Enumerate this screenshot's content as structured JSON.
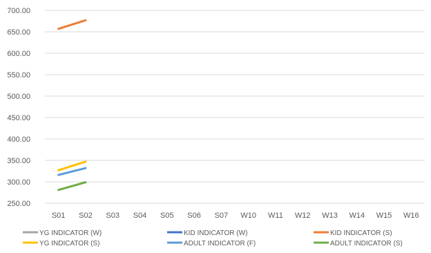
{
  "chart_data": {
    "type": "line",
    "title": "",
    "xlabel": "",
    "ylabel": "",
    "categories": [
      "S01",
      "S02",
      "S03",
      "S04",
      "S05",
      "S06",
      "S07",
      "W10",
      "W11",
      "W12",
      "W13",
      "W14",
      "W15",
      "W16"
    ],
    "ylim": [
      250,
      700
    ],
    "yticks": [
      250,
      300,
      350,
      400,
      450,
      500,
      550,
      600,
      650,
      700
    ],
    "ytick_labels": [
      "250.00",
      "300.00",
      "350.00",
      "400.00",
      "450.00",
      "500.00",
      "550.00",
      "600.00",
      "650.00",
      "700.00"
    ],
    "grid": true,
    "legend_position": "bottom",
    "series": [
      {
        "name": "YG INDICATOR (W)",
        "color": "#A5A5A5",
        "values": [
          null,
          null,
          null,
          null,
          null,
          null,
          null,
          null,
          null,
          null,
          null,
          null,
          null,
          null
        ]
      },
      {
        "name": "KID INDICATOR (W)",
        "color": "#4472C4",
        "values": [
          null,
          null,
          null,
          null,
          null,
          null,
          null,
          null,
          null,
          null,
          null,
          null,
          null,
          null
        ]
      },
      {
        "name": "KID INDICATOR (S)",
        "color": "#ED7D31",
        "values": [
          657,
          677,
          null,
          null,
          null,
          null,
          null,
          null,
          null,
          null,
          null,
          null,
          null,
          null
        ]
      },
      {
        "name": "YG INDICATOR (S)",
        "color": "#FFC000",
        "values": [
          327,
          347,
          null,
          null,
          null,
          null,
          null,
          null,
          null,
          null,
          null,
          null,
          null,
          null
        ]
      },
      {
        "name": "ADULT INDICATOR (F)",
        "color": "#5B9BD5",
        "values": [
          316,
          332,
          null,
          null,
          null,
          null,
          null,
          null,
          null,
          null,
          null,
          null,
          null,
          null
        ]
      },
      {
        "name": "ADULT INDICATOR (S)",
        "color": "#70AD47",
        "values": [
          281,
          299,
          null,
          null,
          null,
          null,
          null,
          null,
          null,
          null,
          null,
          null,
          null,
          null
        ]
      }
    ]
  }
}
